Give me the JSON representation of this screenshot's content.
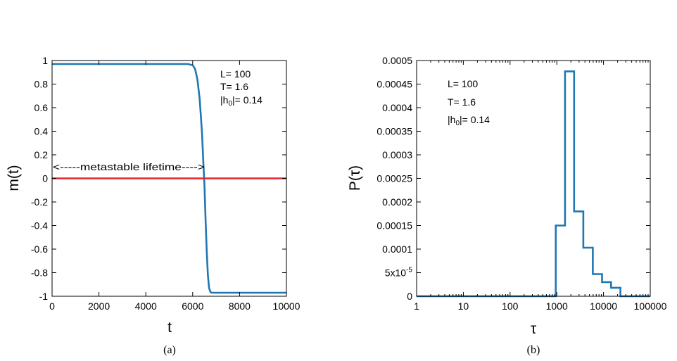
{
  "chart_data": [
    {
      "type": "line",
      "panel_label": "(a)",
      "xlabel": "t",
      "ylabel": "m(t)",
      "xlim": [
        0,
        10000
      ],
      "ylim": [
        -1,
        1
      ],
      "x_ticks": [
        0,
        2000,
        4000,
        6000,
        8000,
        10000
      ],
      "x_tick_labels": [
        "0",
        "2000",
        "4000",
        "6000",
        "8000",
        "10000"
      ],
      "y_ticks": [
        -1,
        -0.8,
        -0.6,
        -0.4,
        -0.2,
        0,
        0.2,
        0.4,
        0.6,
        0.8,
        1
      ],
      "y_tick_labels": [
        "-1",
        "-0.8",
        "-0.6",
        "-0.4",
        "-0.2",
        "0",
        "0.2",
        "0.4",
        "0.6",
        "0.8",
        "1"
      ],
      "grid": false,
      "series": [
        {
          "color": "#1f77b4",
          "x": [
            0,
            1000,
            2000,
            3000,
            4000,
            5000,
            5800,
            6000,
            6100,
            6200,
            6300,
            6400,
            6450,
            6500,
            6550,
            6600,
            6650,
            6700,
            6750,
            6800,
            7000,
            8000,
            9000,
            10000
          ],
          "y": [
            0.97,
            0.97,
            0.97,
            0.97,
            0.97,
            0.97,
            0.97,
            0.96,
            0.93,
            0.84,
            0.67,
            0.38,
            0.15,
            -0.05,
            -0.35,
            -0.62,
            -0.82,
            -0.93,
            -0.96,
            -0.97,
            -0.97,
            -0.97,
            -0.97,
            -0.97
          ]
        },
        {
          "color": "#e3262c",
          "x": [
            0,
            10000
          ],
          "y": [
            0,
            0
          ]
        }
      ],
      "annotations": {
        "L": "L= 100",
        "T": "T= 1.6",
        "h_prefix": "|h",
        "h_sub": "0",
        "h_suffix": "|= 0.14",
        "lifetime": "<-----metastable lifetime---->"
      }
    },
    {
      "type": "bar",
      "style": "step-histogram",
      "panel_label": "(b)",
      "xlabel": "τ",
      "ylabel": "P(τ)",
      "x_scale": "log",
      "xlim": [
        1,
        100000
      ],
      "ylim": [
        0,
        0.0005
      ],
      "x_ticks": [
        1,
        10,
        100,
        1000,
        10000,
        100000
      ],
      "x_tick_labels": [
        "1",
        "10",
        "100",
        "1000",
        "10000",
        "100000"
      ],
      "y_ticks": [
        0,
        5e-05,
        0.0001,
        0.00015,
        0.0002,
        0.00025,
        0.0003,
        0.00035,
        0.0004,
        0.00045,
        0.0005
      ],
      "y_tick_labels": [
        "0",
        "5x10",
        "0.0001",
        "0.00015",
        "0.0002",
        "0.00025",
        "0.0003",
        "0.00035",
        "0.0004",
        "0.00045",
        "0.0005"
      ],
      "y_tick_5e5_exponent": "-5",
      "grid": false,
      "color": "#1f77b4",
      "bin_edges": [
        950,
        1500,
        2350,
        3700,
        5900,
        9300,
        14500,
        23000
      ],
      "values": [
        0.00015,
        0.000477,
        0.00018,
        0.000103,
        4.7e-05,
        3e-05,
        1.8e-05
      ],
      "annotations": {
        "L": "L= 100",
        "T": "T= 1.6",
        "h_prefix": "|h",
        "h_sub": "0",
        "h_suffix": "|= 0.14"
      }
    }
  ]
}
